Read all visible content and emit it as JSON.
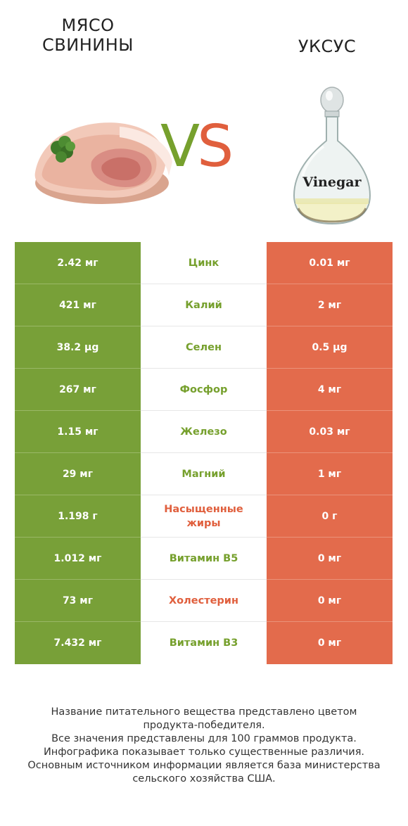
{
  "header": {
    "left_title_line1": "МЯСО",
    "left_title_line2": "СВИНИНЫ",
    "right_title": "УКСУС",
    "vs_v": "V",
    "vs_s": "S",
    "vinegar_label": "Vinegar"
  },
  "colors": {
    "green": "#78a038",
    "red": "#e36b4c"
  },
  "rows": [
    {
      "left": "2.42 мг",
      "name": "Цинк",
      "right": "0.01 мг",
      "winner": "green"
    },
    {
      "left": "421 мг",
      "name": "Калий",
      "right": "2 мг",
      "winner": "green"
    },
    {
      "left": "38.2 µg",
      "name": "Селен",
      "right": "0.5 µg",
      "winner": "green"
    },
    {
      "left": "267 мг",
      "name": "Фосфор",
      "right": "4 мг",
      "winner": "green"
    },
    {
      "left": "1.15 мг",
      "name": "Железо",
      "right": "0.03 мг",
      "winner": "green"
    },
    {
      "left": "29 мг",
      "name": "Магний",
      "right": "1 мг",
      "winner": "green"
    },
    {
      "left": "1.198 г",
      "name": "Насыщенные жиры",
      "right": "0 г",
      "winner": "red"
    },
    {
      "left": "1.012 мг",
      "name": "Витамин B5",
      "right": "0 мг",
      "winner": "green"
    },
    {
      "left": "73 мг",
      "name": "Холестерин",
      "right": "0 мг",
      "winner": "red"
    },
    {
      "left": "7.432 мг",
      "name": "Витамин B3",
      "right": "0 мг",
      "winner": "green"
    }
  ],
  "footnote": {
    "line1": "Название питательного вещества представлено цветом",
    "line2": "продукта-победителя.",
    "line3": "Все значения представлены для 100 граммов продукта.",
    "line4": "Инфографика показывает только существенные различия.",
    "line5": "Основным источником информации является база министерства",
    "line6": "сельского хозяйства США."
  }
}
